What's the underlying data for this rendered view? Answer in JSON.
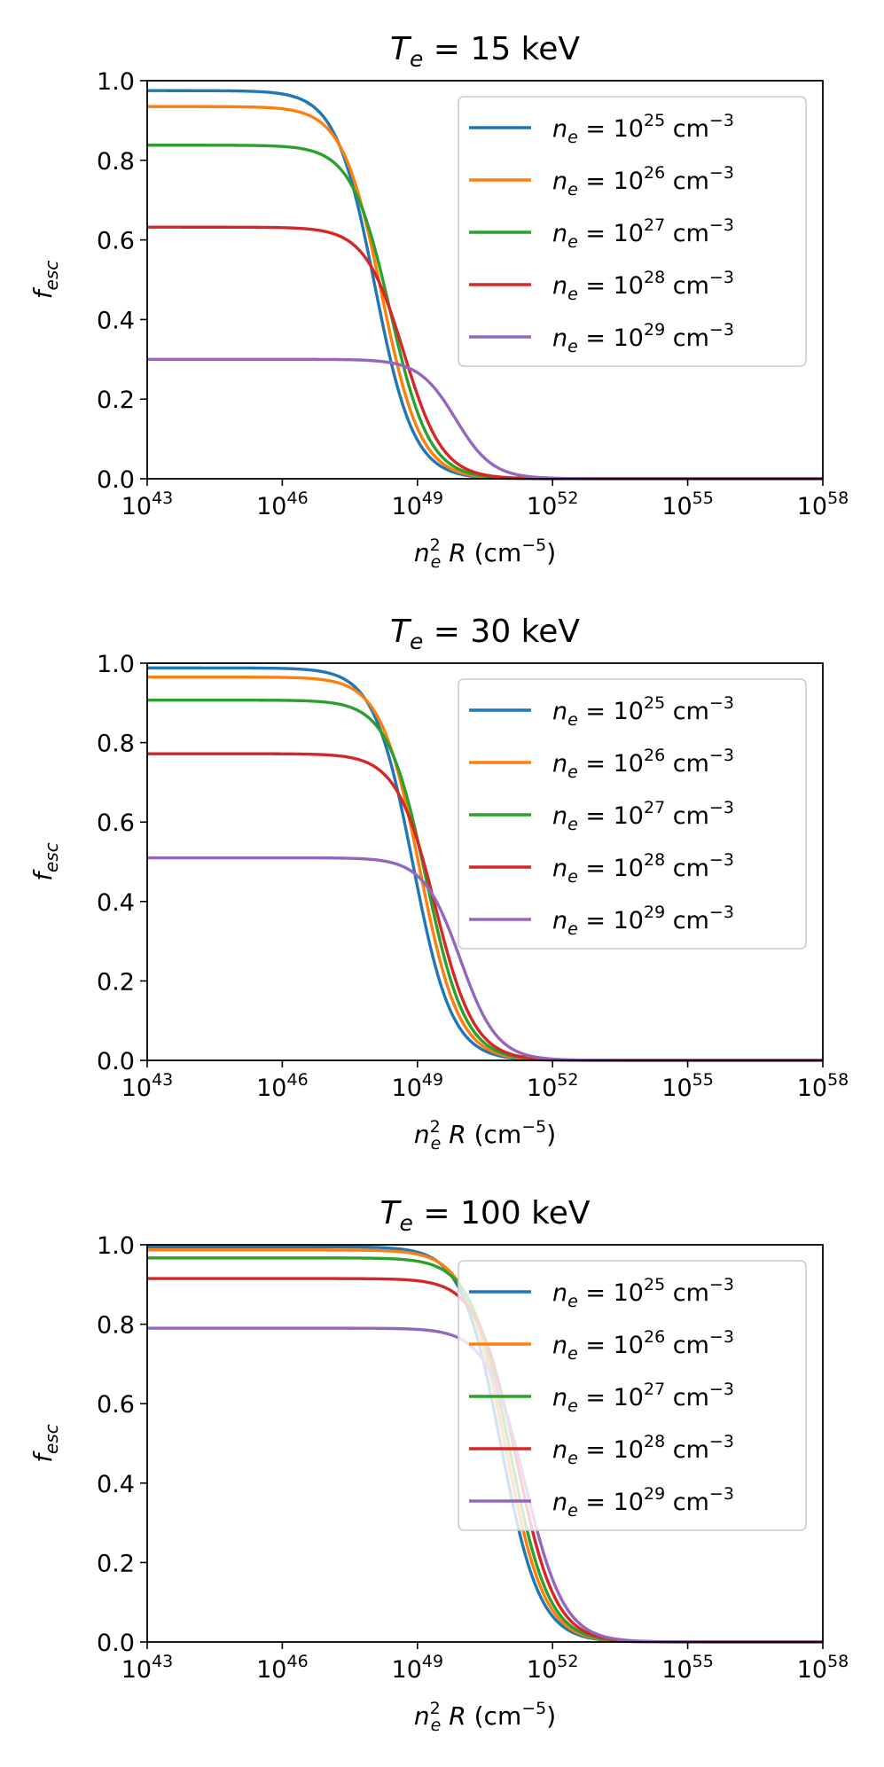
{
  "chart_data": [
    {
      "type": "line",
      "title": {
        "symbol": "T",
        "sub": "e",
        "text": " = 15 keV"
      },
      "xlabel": {
        "symbol": "n",
        "sub": "e",
        "sup": "2",
        "rest_italic": " R",
        "rest": " (cm",
        "unit_sup": "−5",
        "close": ")"
      },
      "ylabel": {
        "symbol": "f",
        "sub": "esc"
      },
      "xscale": "log",
      "xlim_exp": [
        43,
        58
      ],
      "ylim": [
        0,
        1
      ],
      "xtick_base": "10",
      "xtick_exponents": [
        "43",
        "46",
        "49",
        "52",
        "55",
        "58"
      ],
      "yticks": [
        "0.0",
        "0.2",
        "0.4",
        "0.6",
        "0.8",
        "1.0"
      ],
      "legend_location": "upper right",
      "series": [
        {
          "name": "n_e = 10^25 cm^-3",
          "label": {
            "sym": "n",
            "sub": "e",
            "eq": " = 10",
            "exp": "25",
            "unit": " cm",
            "usup": "−3"
          },
          "color": "#1f77b4",
          "plateau": 0.975,
          "x50_log": 48.05,
          "width": 0.95
        },
        {
          "name": "n_e = 10^26 cm^-3",
          "label": {
            "sym": "n",
            "sub": "e",
            "eq": " = 10",
            "exp": "26",
            "unit": " cm",
            "usup": "−3"
          },
          "color": "#ff7f0e",
          "plateau": 0.935,
          "x50_log": 48.2,
          "width": 0.95
        },
        {
          "name": "n_e = 10^27 cm^-3",
          "label": {
            "sym": "n",
            "sub": "e",
            "eq": " = 10",
            "exp": "27",
            "unit": " cm",
            "usup": "−3"
          },
          "color": "#2ca02c",
          "plateau": 0.838,
          "x50_log": 48.4,
          "width": 0.95
        },
        {
          "name": "n_e = 10^28 cm^-3",
          "label": {
            "sym": "n",
            "sub": "e",
            "eq": " = 10",
            "exp": "28",
            "unit": " cm",
            "usup": "−3"
          },
          "color": "#d62728",
          "plateau": 0.632,
          "x50_log": 48.7,
          "width": 0.95
        },
        {
          "name": "n_e = 10^29 cm^-3",
          "label": {
            "sym": "n",
            "sub": "e",
            "eq": " = 10",
            "exp": "29",
            "unit": " cm",
            "usup": "−3"
          },
          "color": "#9467bd",
          "plateau": 0.3,
          "x50_log": 49.85,
          "width": 0.9
        }
      ]
    },
    {
      "type": "line",
      "title": {
        "symbol": "T",
        "sub": "e",
        "text": " = 30 keV"
      },
      "xlabel": {
        "symbol": "n",
        "sub": "e",
        "sup": "2",
        "rest_italic": " R",
        "rest": " (cm",
        "unit_sup": "−5",
        "close": ")"
      },
      "ylabel": {
        "symbol": "f",
        "sub": "esc"
      },
      "xscale": "log",
      "xlim_exp": [
        43,
        58
      ],
      "ylim": [
        0,
        1
      ],
      "xtick_base": "10",
      "xtick_exponents": [
        "43",
        "46",
        "49",
        "52",
        "55",
        "58"
      ],
      "yticks": [
        "0.0",
        "0.2",
        "0.4",
        "0.6",
        "0.8",
        "1.0"
      ],
      "legend_location": "upper right",
      "series": [
        {
          "name": "n_e = 10^25 cm^-3",
          "label": {
            "sym": "n",
            "sub": "e",
            "eq": " = 10",
            "exp": "25",
            "unit": " cm",
            "usup": "−3"
          },
          "color": "#1f77b4",
          "plateau": 0.988,
          "x50_log": 48.9,
          "width": 0.95
        },
        {
          "name": "n_e = 10^26 cm^-3",
          "label": {
            "sym": "n",
            "sub": "e",
            "eq": " = 10",
            "exp": "26",
            "unit": " cm",
            "usup": "−3"
          },
          "color": "#ff7f0e",
          "plateau": 0.965,
          "x50_log": 49.05,
          "width": 0.95
        },
        {
          "name": "n_e = 10^27 cm^-3",
          "label": {
            "sym": "n",
            "sub": "e",
            "eq": " = 10",
            "exp": "27",
            "unit": " cm",
            "usup": "−3"
          },
          "color": "#2ca02c",
          "plateau": 0.907,
          "x50_log": 49.2,
          "width": 0.95
        },
        {
          "name": "n_e = 10^28 cm^-3",
          "label": {
            "sym": "n",
            "sub": "e",
            "eq": " = 10",
            "exp": "28",
            "unit": " cm",
            "usup": "−3"
          },
          "color": "#d62728",
          "plateau": 0.772,
          "x50_log": 49.4,
          "width": 0.95
        },
        {
          "name": "n_e = 10^29 cm^-3",
          "label": {
            "sym": "n",
            "sub": "e",
            "eq": " = 10",
            "exp": "29",
            "unit": " cm",
            "usup": "−3"
          },
          "color": "#9467bd",
          "plateau": 0.51,
          "x50_log": 49.95,
          "width": 0.9
        }
      ]
    },
    {
      "type": "line",
      "title": {
        "symbol": "T",
        "sub": "e",
        "text": " = 100 keV"
      },
      "xlabel": {
        "symbol": "n",
        "sub": "e",
        "sup": "2",
        "rest_italic": " R",
        "rest": " (cm",
        "unit_sup": "−5",
        "close": ")"
      },
      "ylabel": {
        "symbol": "f",
        "sub": "esc"
      },
      "xscale": "log",
      "xlim_exp": [
        43,
        58
      ],
      "ylim": [
        0,
        1
      ],
      "xtick_base": "10",
      "xtick_exponents": [
        "43",
        "46",
        "49",
        "52",
        "55",
        "58"
      ],
      "yticks": [
        "0.0",
        "0.2",
        "0.4",
        "0.6",
        "0.8",
        "1.0"
      ],
      "legend_location": "upper right",
      "series": [
        {
          "name": "n_e = 10^25 cm^-3",
          "label": {
            "sym": "n",
            "sub": "e",
            "eq": " = 10",
            "exp": "25",
            "unit": " cm",
            "usup": "−3"
          },
          "color": "#1f77b4",
          "plateau": 0.995,
          "x50_log": 50.85,
          "width": 0.95
        },
        {
          "name": "n_e = 10^26 cm^-3",
          "label": {
            "sym": "n",
            "sub": "e",
            "eq": " = 10",
            "exp": "26",
            "unit": " cm",
            "usup": "−3"
          },
          "color": "#ff7f0e",
          "plateau": 0.987,
          "x50_log": 50.95,
          "width": 0.95
        },
        {
          "name": "n_e = 10^27 cm^-3",
          "label": {
            "sym": "n",
            "sub": "e",
            "eq": " = 10",
            "exp": "27",
            "unit": " cm",
            "usup": "−3"
          },
          "color": "#2ca02c",
          "plateau": 0.967,
          "x50_log": 51.05,
          "width": 0.95
        },
        {
          "name": "n_e = 10^28 cm^-3",
          "label": {
            "sym": "n",
            "sub": "e",
            "eq": " = 10",
            "exp": "28",
            "unit": " cm",
            "usup": "−3"
          },
          "color": "#d62728",
          "plateau": 0.915,
          "x50_log": 51.2,
          "width": 0.95
        },
        {
          "name": "n_e = 10^29 cm^-3",
          "label": {
            "sym": "n",
            "sub": "e",
            "eq": " = 10",
            "exp": "29",
            "unit": " cm",
            "usup": "−3"
          },
          "color": "#9467bd",
          "plateau": 0.79,
          "x50_log": 51.4,
          "width": 0.95
        }
      ]
    }
  ]
}
